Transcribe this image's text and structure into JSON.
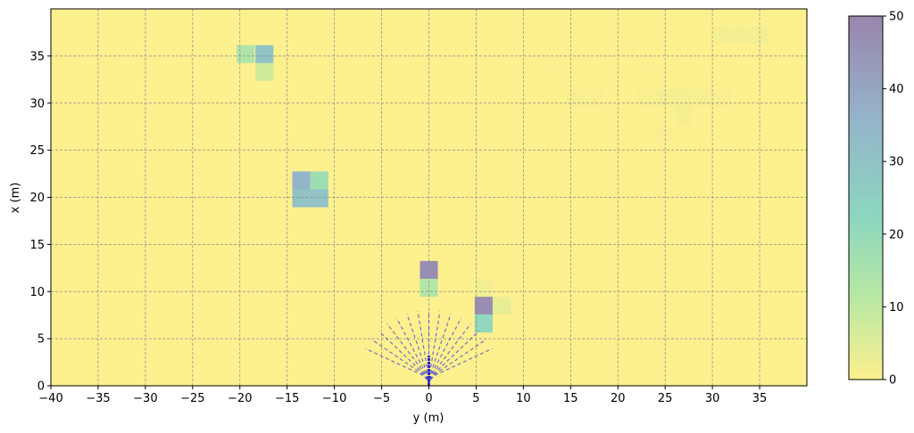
{
  "chart_data": {
    "type": "heatmap",
    "xlabel": "y (m)",
    "ylabel": "x (m)",
    "xlim": [
      -40,
      40
    ],
    "ylim": [
      0,
      40
    ],
    "x_ticks": [
      -40,
      -35,
      -30,
      -25,
      -20,
      -15,
      -10,
      -5,
      0,
      5,
      10,
      15,
      20,
      25,
      30,
      35
    ],
    "x_tick_labels": [
      "−40",
      "−35",
      "−30",
      "−25",
      "−20",
      "−15",
      "−10",
      "−5",
      "0",
      "5",
      "10",
      "15",
      "20",
      "25",
      "30",
      "35"
    ],
    "y_ticks": [
      0,
      5,
      10,
      15,
      20,
      25,
      30,
      35
    ],
    "y_tick_labels": [
      "0",
      "5",
      "10",
      "15",
      "20",
      "25",
      "30",
      "35"
    ],
    "grid": true,
    "cell_size_m": 1.9,
    "colormap": [
      "#fdf08f",
      "#b9e8a3",
      "#8cd6bf",
      "#94b6ca",
      "#9a86ae"
    ],
    "colorbar": {
      "range": [
        0,
        50
      ],
      "ticks": [
        0,
        10,
        20,
        30,
        40,
        50
      ],
      "tick_labels": [
        "0",
        "10",
        "20",
        "30",
        "40",
        "50"
      ]
    },
    "cells": [
      {
        "y": -19.4,
        "x": 35.2,
        "value": 15
      },
      {
        "y": -17.4,
        "x": 35.2,
        "value": 33
      },
      {
        "y": -17.4,
        "x": 33.3,
        "value": 8
      },
      {
        "y": -13.5,
        "x": 21.8,
        "value": 38
      },
      {
        "y": -11.6,
        "x": 21.8,
        "value": 20
      },
      {
        "y": -13.5,
        "x": 19.9,
        "value": 33
      },
      {
        "y": -11.6,
        "x": 19.9,
        "value": 33
      },
      {
        "y": 0.0,
        "x": 12.3,
        "value": 48
      },
      {
        "y": 0.0,
        "x": 10.4,
        "value": 14
      },
      {
        "y": 5.8,
        "x": 8.5,
        "value": 48
      },
      {
        "y": 7.7,
        "x": 8.5,
        "value": 4
      },
      {
        "y": 5.8,
        "x": 6.6,
        "value": 24
      },
      {
        "y": 5.8,
        "x": 10.4,
        "value": 2
      },
      {
        "y": 31.0,
        "x": 37.2,
        "value": 1.5
      },
      {
        "y": 33.0,
        "x": 37.2,
        "value": 1.5
      },
      {
        "y": 35.0,
        "x": 37.2,
        "value": 1.5
      },
      {
        "y": 27.0,
        "x": 30.5,
        "value": 1.5
      },
      {
        "y": 25.0,
        "x": 30.5,
        "value": 1.2
      },
      {
        "y": 23.0,
        "x": 30.5,
        "value": 1.0
      },
      {
        "y": 27.0,
        "x": 28.6,
        "value": 1.2
      },
      {
        "y": 15.5,
        "x": 30.5,
        "value": 0.8
      },
      {
        "y": 17.5,
        "x": 30.5,
        "value": 0.8
      },
      {
        "y": 21.0,
        "x": 36.0,
        "value": 0.6
      },
      {
        "y": 23.0,
        "x": 34.3,
        "value": 0.6
      },
      {
        "y": 25.0,
        "x": 26.6,
        "value": 0.8
      },
      {
        "y": 13.0,
        "x": 34.3,
        "value": 0.6
      },
      {
        "y": 29.0,
        "x": 30.5,
        "value": 1.0
      },
      {
        "y": 31.0,
        "x": 30.5,
        "value": 0.8
      }
    ],
    "trajectories": {
      "count": 15,
      "color": "#5a55c9",
      "origin": [
        0,
        0
      ],
      "length_m": 8,
      "heading_range_deg": [
        -65,
        65
      ],
      "curvature": 0.18
    }
  }
}
